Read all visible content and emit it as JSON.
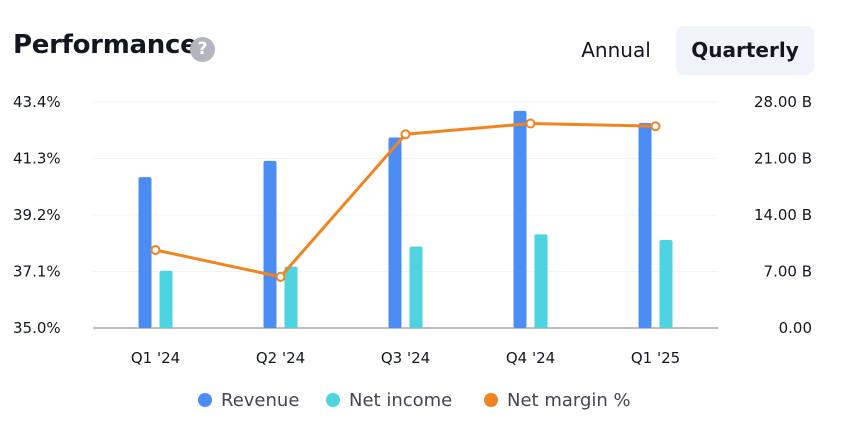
{
  "header": {
    "title": "Performance",
    "help_icon": "question-mark-icon",
    "tabs": [
      {
        "label": "Annual",
        "active": false
      },
      {
        "label": "Quarterly",
        "active": true
      }
    ]
  },
  "colors": {
    "revenue": "#4c8df5",
    "net_income": "#4dd4e0",
    "net_margin": "#f0851f"
  },
  "chart_data": {
    "type": "bar",
    "categories": [
      "Q1 '24",
      "Q2 '24",
      "Q3 '24",
      "Q4 '24",
      "Q1 '25"
    ],
    "series": [
      {
        "name": "Revenue",
        "type": "bar",
        "axis": "right",
        "values": [
          18.7,
          20.7,
          23.6,
          26.9,
          25.4
        ]
      },
      {
        "name": "Net income",
        "type": "bar",
        "axis": "right",
        "values": [
          7.1,
          7.6,
          10.1,
          11.6,
          10.9
        ]
      },
      {
        "name": "Net margin %",
        "type": "line",
        "axis": "left",
        "values": [
          37.9,
          36.9,
          42.2,
          42.6,
          42.5
        ]
      }
    ],
    "left_axis": {
      "ticks": [
        "43.4%",
        "41.3%",
        "39.2%",
        "37.1%",
        "35.0%"
      ],
      "range": [
        35.0,
        43.4
      ]
    },
    "right_axis": {
      "ticks": [
        "28.00 B",
        "21.00 B",
        "14.00 B",
        "7.00 B",
        "0.00"
      ],
      "range": [
        0,
        28
      ]
    },
    "grid": true,
    "legend_position": "bottom"
  }
}
